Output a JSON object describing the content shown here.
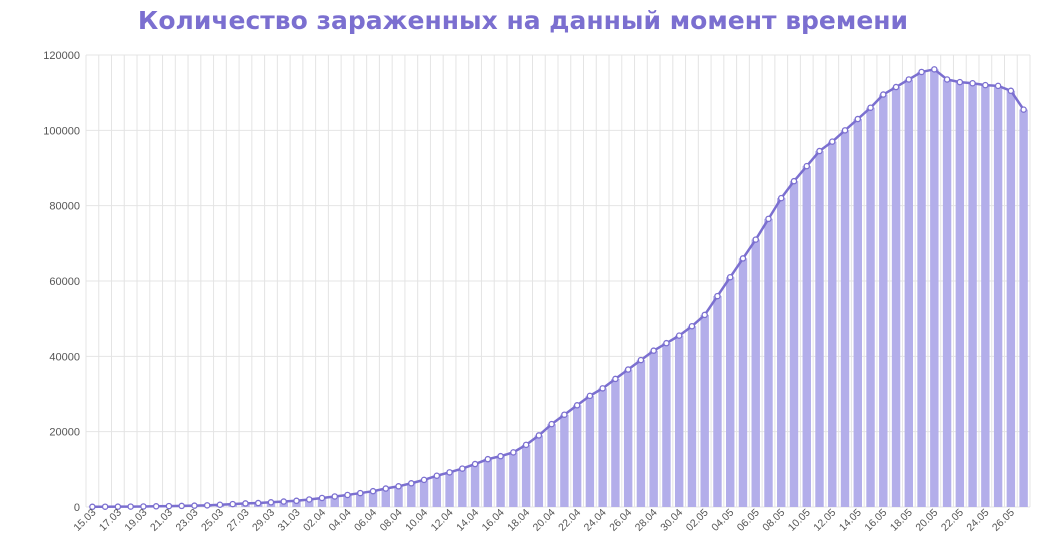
{
  "chart_data": {
    "type": "bar",
    "title": "Количество зараженных на данный момент времени",
    "xlabel": "",
    "ylabel": "",
    "ylim": [
      0,
      120000
    ],
    "yticks": [
      0,
      20000,
      40000,
      60000,
      80000,
      100000,
      120000
    ],
    "x_tick_labels": [
      "15.03",
      "17.03",
      "19.03",
      "21.03",
      "23.03",
      "25.03",
      "27.03",
      "29.03",
      "31.03",
      "02.04",
      "04.04",
      "06.04",
      "08.04",
      "10.04",
      "12.04",
      "14.04",
      "16.04",
      "18.04",
      "20.04",
      "22.04",
      "24.04",
      "26.04",
      "28.04",
      "30.04",
      "02.05",
      "04.05",
      "06.05",
      "08.05",
      "10.05",
      "12.05",
      "14.05",
      "16.05",
      "18.05",
      "20.05",
      "22.05",
      "24.05",
      "26.05"
    ],
    "grid": true,
    "bar_color": "#b3aeea",
    "line_color": "#7b6fd0",
    "categories": [
      "15.03",
      "16.03",
      "17.03",
      "18.03",
      "19.03",
      "20.03",
      "21.03",
      "22.03",
      "23.03",
      "24.03",
      "25.03",
      "26.03",
      "27.03",
      "28.03",
      "29.03",
      "30.03",
      "31.03",
      "01.04",
      "02.04",
      "03.04",
      "04.04",
      "05.04",
      "06.04",
      "07.04",
      "08.04",
      "09.04",
      "10.04",
      "11.04",
      "12.04",
      "13.04",
      "14.04",
      "15.04",
      "16.04",
      "17.04",
      "18.04",
      "19.04",
      "20.04",
      "21.04",
      "22.04",
      "23.04",
      "24.04",
      "25.04",
      "26.04",
      "27.04",
      "28.04",
      "29.04",
      "30.04",
      "01.05",
      "02.05",
      "03.05",
      "04.05",
      "05.05",
      "06.05",
      "07.05",
      "08.05",
      "09.05",
      "10.05",
      "11.05",
      "12.05",
      "13.05",
      "14.05",
      "15.05",
      "16.05",
      "17.05",
      "18.05",
      "19.05",
      "20.05",
      "21.05",
      "22.05",
      "23.05",
      "24.05",
      "25.05",
      "26.05",
      "27.05"
    ],
    "values": [
      60,
      75,
      90,
      110,
      140,
      190,
      240,
      290,
      350,
      440,
      600,
      770,
      950,
      1050,
      1250,
      1450,
      1650,
      2000,
      2400,
      2800,
      3200,
      3700,
      4200,
      4900,
      5500,
      6300,
      7200,
      8300,
      9200,
      10200,
      11400,
      12700,
      13500,
      14500,
      16500,
      19000,
      22000,
      24500,
      27000,
      29500,
      31500,
      34000,
      36500,
      39000,
      41500,
      43500,
      45500,
      48000,
      51000,
      56000,
      61000,
      66000,
      71000,
      76500,
      82000,
      86500,
      90500,
      94500,
      97000,
      100000,
      103000,
      106000,
      109500,
      111500,
      113500,
      115500,
      116200,
      113500,
      112800,
      112500,
      112000,
      111800,
      110500,
      105500
    ]
  }
}
